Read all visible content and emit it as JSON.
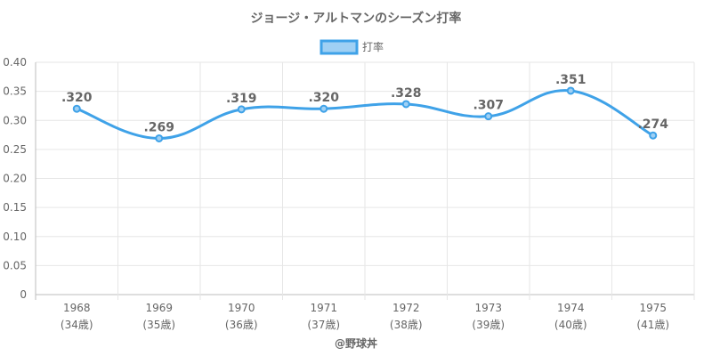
{
  "chart_data": {
    "type": "line",
    "title": "ジョージ・アルトマンのシーズン打率",
    "categories": [
      "1968",
      "1969",
      "1970",
      "1971",
      "1972",
      "1973",
      "1974",
      "1975"
    ],
    "category_sublabels": [
      "(34歳)",
      "(35歳)",
      "(36歳)",
      "(37歳)",
      "(38歳)",
      "(39歳)",
      "(40歳)",
      "(41歳)"
    ],
    "series": [
      {
        "name": "打率",
        "values": [
          0.32,
          0.269,
          0.319,
          0.32,
          0.328,
          0.307,
          0.351,
          0.274
        ],
        "labels": [
          ".320",
          ".269",
          ".319",
          ".320",
          ".328",
          ".307",
          ".351",
          ".274"
        ],
        "color": "#3fa2e8",
        "fill": "#9fd0f4"
      }
    ],
    "ylim": [
      0,
      0.4
    ],
    "yticks": [
      "0",
      "0.05",
      "0.10",
      "0.15",
      "0.20",
      "0.25",
      "0.30",
      "0.35",
      "0.40"
    ],
    "grid": true,
    "legend_position": "top-center",
    "credit": "@野球丼"
  }
}
